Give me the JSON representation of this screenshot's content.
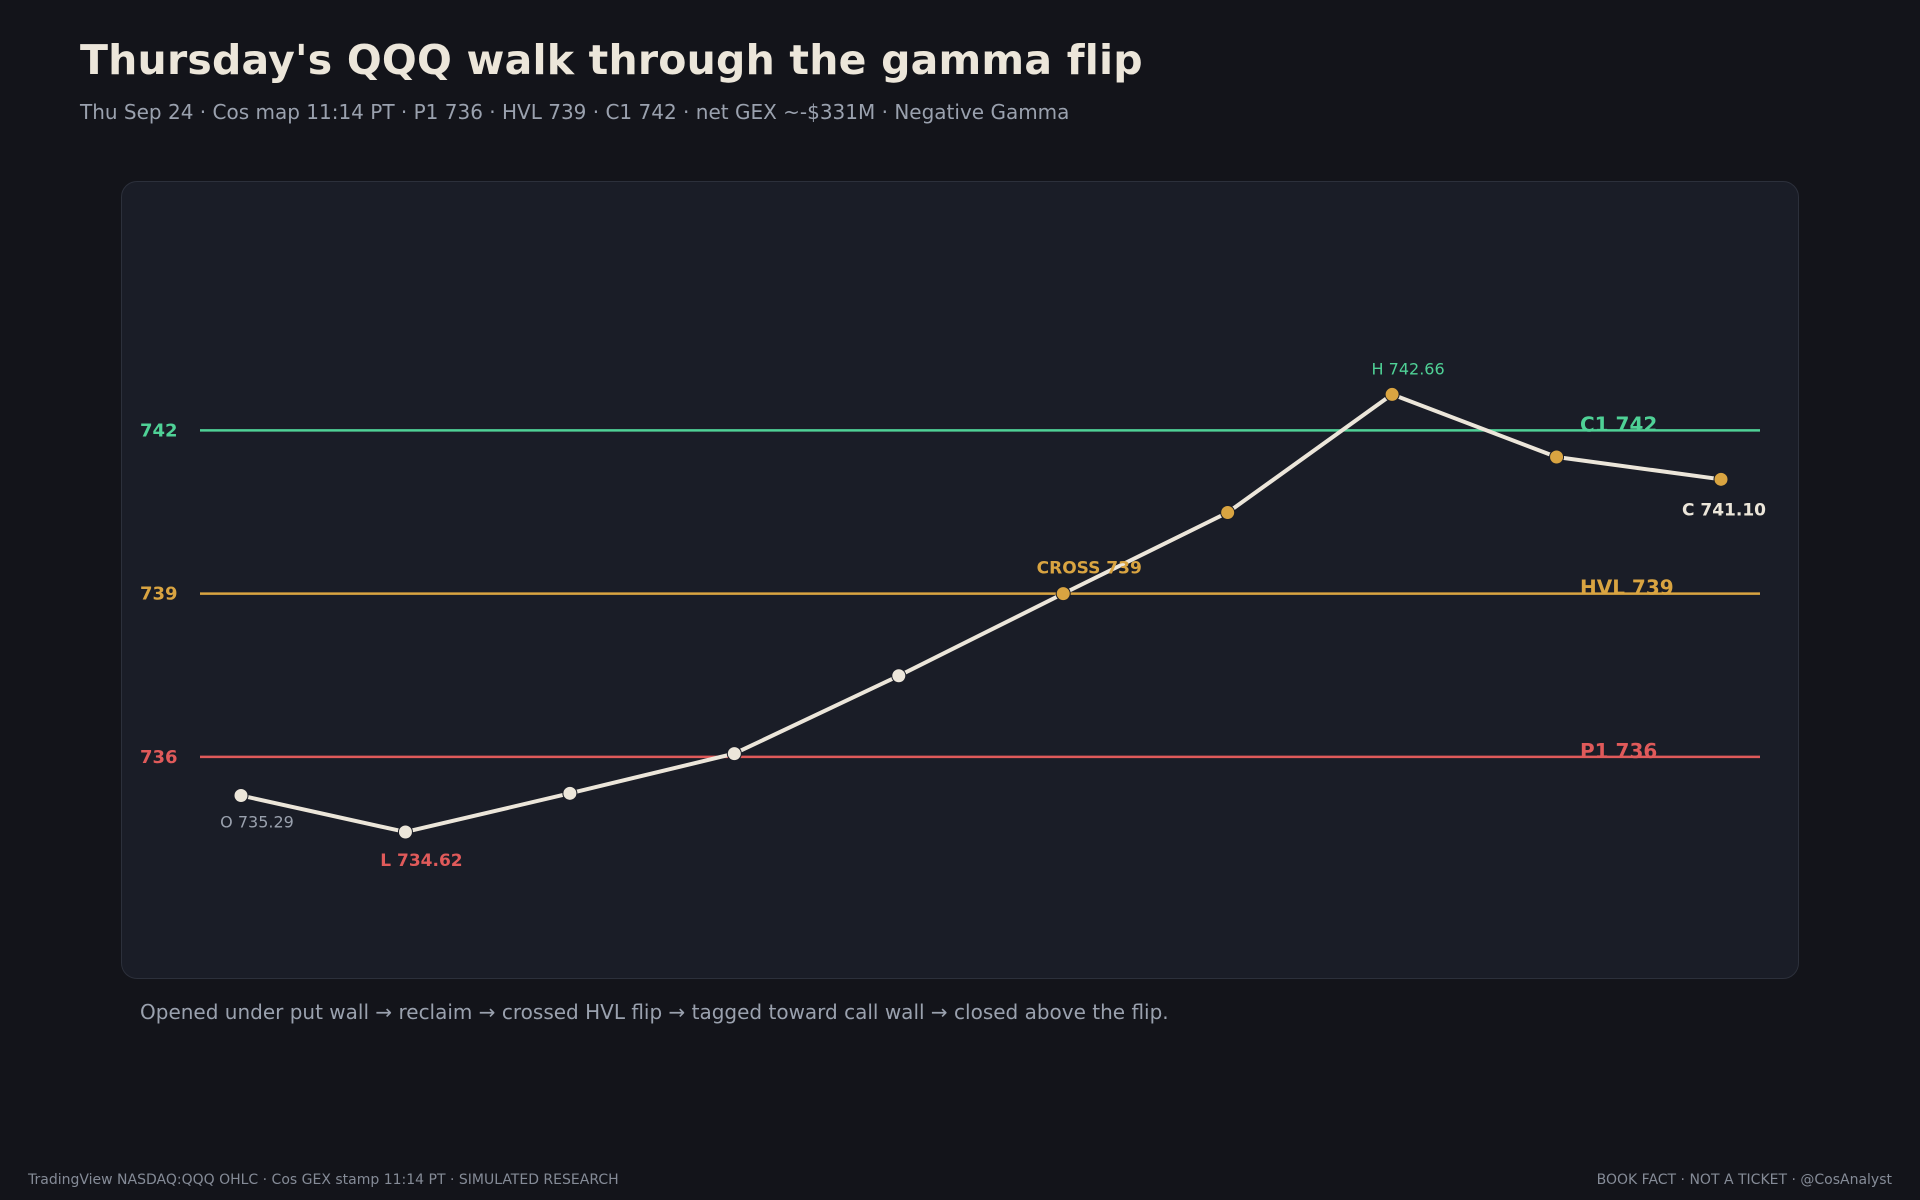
{
  "header": {
    "title": "Thursday's QQQ walk through the gamma flip",
    "subtitle": "Thu Sep 24 · Cos map 11:14 PT · P1 736 · HVL 739 · C1 742 · net GEX ~-$331M · Negative Gamma"
  },
  "caption": "Opened under put wall → reclaim → crossed HVL flip → tagged toward call wall → closed above the flip.",
  "footer": {
    "left": "TradingView NASDAQ:QQQ OHLC · Cos GEX stamp 11:14 PT · SIMULATED RESEARCH",
    "right": "BOOK FACT · NOT A TICKET · @CosAnalyst"
  },
  "colors": {
    "background": "#13141a",
    "panel": "#1a1d27",
    "line": "#ece6da",
    "white_point": "#ece6da",
    "gold_point": "#d9a441",
    "call_wall": "#4fd196",
    "hvl": "#d9a441",
    "put_wall": "#e05a5a",
    "muted_text": "#9aa1ae"
  },
  "chart_data": {
    "type": "line",
    "ylim": [
      731.9,
      746.6
    ],
    "series": [
      {
        "values": [
          735.29,
          734.62,
          735.33,
          736.06,
          737.49,
          739.0,
          740.49,
          742.66,
          741.51,
          741.1
        ],
        "point_colors": [
          "white",
          "white",
          "white",
          "white",
          "white",
          "gold",
          "gold",
          "gold",
          "gold",
          "gold"
        ]
      }
    ],
    "levels": [
      {
        "value": 742,
        "axis_label": "742",
        "line_label": "C1 742",
        "color": "#4fd196"
      },
      {
        "value": 739,
        "axis_label": "739",
        "line_label": "HVL 739",
        "color": "#d9a441"
      },
      {
        "value": 736,
        "axis_label": "736",
        "line_label": "P1 736",
        "color": "#e05a5a"
      }
    ],
    "annotations": [
      {
        "index": 0,
        "text": "O 735.29",
        "color": "#9aa1ae",
        "bold": false,
        "place": "below"
      },
      {
        "index": 1,
        "text": "L 734.62",
        "color": "#e05a5a",
        "bold": true,
        "place": "below"
      },
      {
        "index": 5,
        "text": "CROSS 739",
        "color": "#d9a441",
        "bold": true,
        "place": "above"
      },
      {
        "index": 7,
        "text": "H 742.66",
        "color": "#4fd196",
        "bold": false,
        "place": "above"
      },
      {
        "index": 9,
        "text": "C 741.10",
        "color": "#ece6da",
        "bold": true,
        "place": "below"
      }
    ],
    "grid": false,
    "legend": "none"
  }
}
